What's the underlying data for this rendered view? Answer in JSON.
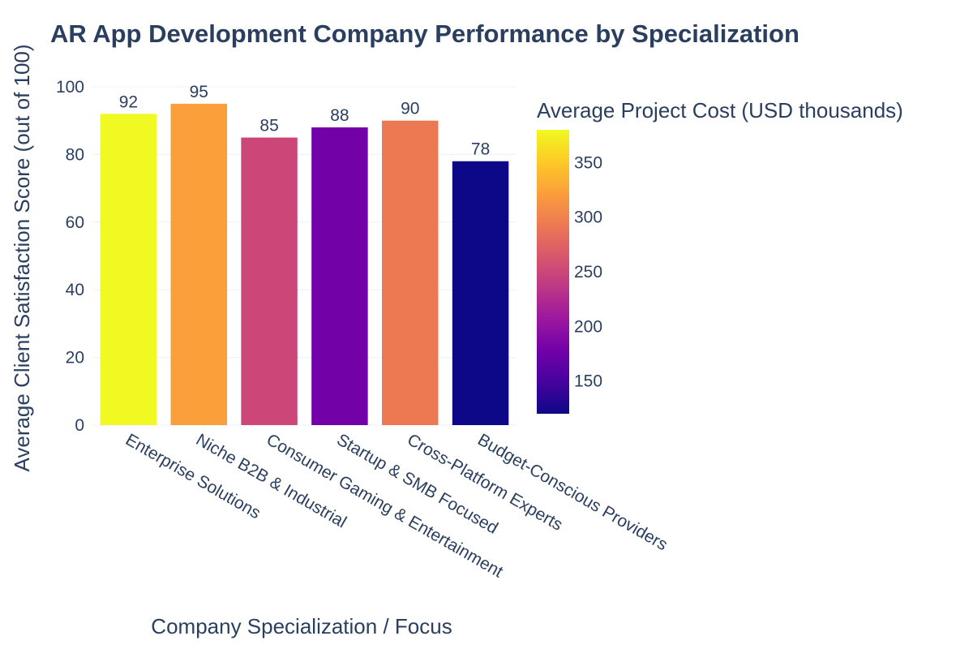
{
  "chart_data": {
    "type": "bar",
    "title": "AR App Development Company Performance by Specialization",
    "xlabel": "Company Specialization / Focus",
    "ylabel": "Average Client Satisfaction Score (out of 100)",
    "ylim": [
      0,
      100
    ],
    "yticks": [
      0,
      20,
      40,
      60,
      80,
      100
    ],
    "grid": true,
    "categories": [
      "Enterprise Solutions",
      "Niche B2B & Industrial",
      "Consumer Gaming & Entertainment",
      "Startup & SMB Focused",
      "Cross-Platform Experts",
      "Budget-Conscious Providers"
    ],
    "values": [
      92,
      95,
      85,
      88,
      90,
      78
    ],
    "data_labels": [
      "92",
      "95",
      "85",
      "88",
      "90",
      "78"
    ],
    "bar_colors": [
      "#f0f921",
      "#fb9f3a",
      "#cc4778",
      "#7201a8",
      "#ed7953",
      "#0d0887"
    ],
    "colorbar": {
      "title": "Average Project Cost (USD thousands)",
      "ticks": [
        150,
        200,
        250,
        300,
        350
      ],
      "range": [
        120,
        380
      ],
      "colorscale": [
        "#0d0887",
        "#46039f",
        "#7201a8",
        "#9c179e",
        "#bd3786",
        "#d8576b",
        "#ed7953",
        "#fb9f3a",
        "#fdca26",
        "#f0f921"
      ]
    }
  }
}
